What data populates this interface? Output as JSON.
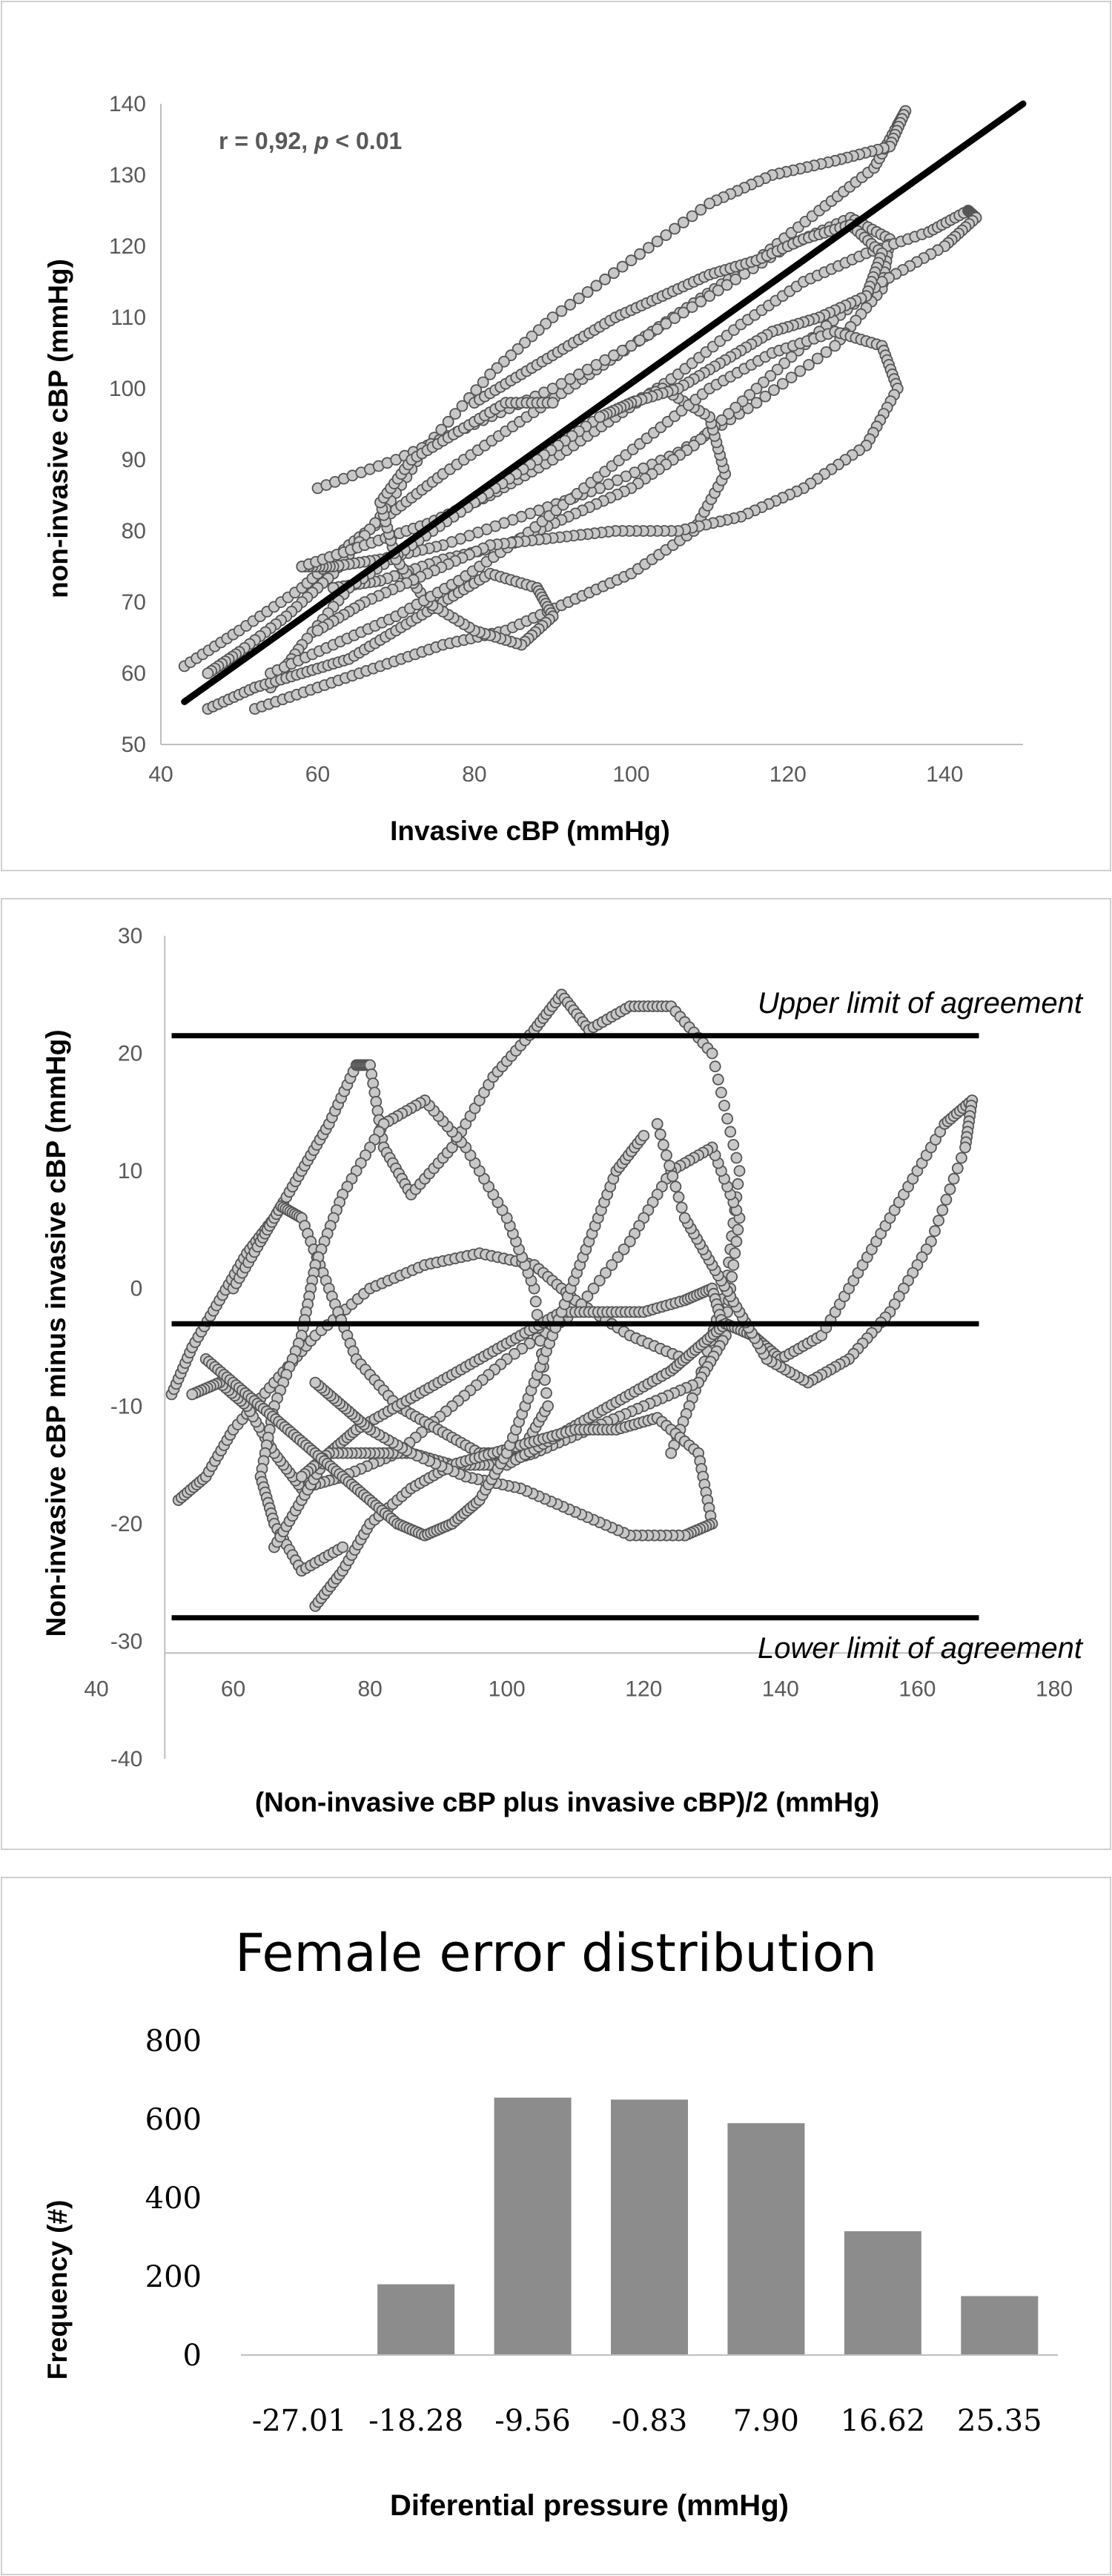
{
  "chart_data": [
    {
      "type": "scatter",
      "title": "",
      "xlabel": "Invasive cBP (mmHg)",
      "ylabel": "non-invasive cBP  (mmHg)",
      "xlim": [
        40,
        150
      ],
      "ylim": [
        50,
        140
      ],
      "x_ticks": [
        "40",
        "60",
        "80",
        "100",
        "120",
        "140"
      ],
      "y_ticks": [
        "50",
        "60",
        "70",
        "80",
        "90",
        "100",
        "110",
        "120",
        "130",
        "140"
      ],
      "annotation": {
        "r_text": "r = 0,92, ",
        "p_symbol": "p",
        "p_rest": " < 0.01"
      },
      "regression_line": {
        "x": [
          43,
          150
        ],
        "y": [
          56,
          140
        ]
      },
      "grid": false,
      "series": [
        {
          "x": [
            43,
            50,
            58,
            64,
            70,
            76,
            84,
            92,
            100,
            108,
            116,
            124,
            131,
            134,
            135,
            133,
            126,
            118,
            110,
            100,
            90,
            82,
            74,
            68,
            62,
            56,
            50,
            46
          ],
          "y": [
            61,
            66,
            72,
            78,
            83,
            88,
            94,
            100,
            106,
            112,
            118,
            125,
            131,
            137,
            139,
            134,
            132,
            130,
            126,
            118,
            110,
            102,
            92,
            82,
            74,
            68,
            63,
            60
          ]
        },
        {
          "x": [
            60,
            70,
            80,
            90,
            100,
            110,
            120,
            128,
            133,
            132,
            126,
            116,
            106,
            96,
            86,
            76,
            68,
            62,
            58
          ],
          "y": [
            86,
            90,
            95,
            100,
            106,
            113,
            120,
            124,
            121,
            114,
            106,
            98,
            91,
            86,
            82,
            78,
            76,
            75,
            75
          ]
        },
        {
          "x": [
            58,
            66,
            74,
            82,
            90,
            98,
            106,
            114,
            122,
            130,
            138,
            143,
            144,
            140,
            132,
            124,
            116,
            108,
            100,
            92,
            84,
            76,
            68,
            62
          ],
          "y": [
            75,
            78,
            81,
            85,
            90,
            96,
            102,
            109,
            115,
            119,
            122,
            125,
            124,
            120,
            115,
            108,
            100,
            92,
            86,
            82,
            78,
            76,
            73,
            72
          ]
        },
        {
          "x": [
            52,
            60,
            68,
            76,
            84,
            92,
            100,
            108,
            112,
            110,
            104,
            96,
            88,
            80,
            72,
            64,
            58,
            54
          ],
          "y": [
            55,
            58,
            61,
            64,
            66,
            70,
            74,
            80,
            88,
            96,
            100,
            96,
            90,
            84,
            78,
            72,
            64,
            58
          ]
        },
        {
          "x": [
            46,
            52,
            58,
            64,
            70,
            76,
            82,
            88,
            90,
            86,
            80,
            74,
            70,
            68,
            72,
            78,
            84,
            90
          ],
          "y": [
            55,
            58,
            60,
            62,
            66,
            70,
            74,
            72,
            68,
            64,
            66,
            70,
            76,
            84,
            90,
            94,
            98,
            98
          ]
        },
        {
          "x": [
            54,
            62,
            70,
            78,
            86,
            94,
            102,
            110,
            118,
            126,
            132,
            134,
            130,
            122,
            114,
            106,
            98,
            90,
            82,
            74,
            66,
            60
          ],
          "y": [
            60,
            64,
            68,
            73,
            79,
            86,
            93,
            100,
            105,
            108,
            106,
            100,
            92,
            86,
            82,
            80,
            80,
            79,
            78,
            74,
            70,
            66
          ]
        },
        {
          "x": [
            80,
            86,
            92,
            98,
            104,
            110,
            116,
            122,
            128,
            132,
            130,
            124,
            118,
            112,
            106,
            100,
            96
          ],
          "y": [
            98,
            102,
            106,
            110,
            113,
            116,
            118,
            121,
            123,
            119,
            113,
            110,
            108,
            104,
            100,
            98,
            96
          ]
        }
      ]
    },
    {
      "type": "scatter",
      "title": "",
      "xlabel": "(Non-invasive cBP plus invasive cBP)/2 (mmHg)",
      "ylabel": "Non-invasive cBP minus invasive cBP (mmHg)",
      "xlim": [
        40,
        180
      ],
      "ylim": [
        -40,
        30
      ],
      "x_ticks": [
        "40",
        "60",
        "80",
        "100",
        "120",
        "140",
        "160",
        "180"
      ],
      "y_ticks": [
        "-40",
        "-30",
        "-20",
        "-10",
        "0",
        "10",
        "20",
        "30"
      ],
      "lines": [
        {
          "label": "Upper limit of agreement",
          "y": 21.5
        },
        {
          "label": "",
          "y": -3
        },
        {
          "label": "Lower limit of agreement",
          "y": -28
        }
      ],
      "grid": false,
      "series": [
        {
          "x": [
            51,
            54,
            58,
            62,
            66,
            70,
            74,
            78,
            80,
            82,
            86,
            92,
            98,
            104,
            108,
            112,
            118,
            124,
            130,
            134,
            132,
            128,
            124
          ],
          "y": [
            -9,
            -5,
            -1,
            3,
            6,
            10,
            14,
            19,
            19,
            12,
            8,
            12,
            18,
            22,
            25,
            22,
            24,
            24,
            20,
            10,
            0,
            -8,
            -14
          ]
        },
        {
          "x": [
            52,
            56,
            60,
            66,
            72,
            80,
            88,
            96,
            104,
            110,
            118,
            126,
            132,
            134,
            130,
            124,
            118,
            110,
            100,
            92,
            84,
            76,
            70,
            66,
            62,
            58,
            54
          ],
          "y": [
            -18,
            -16,
            -12,
            -8,
            -4,
            0,
            2,
            3,
            2,
            -1,
            -4,
            -6,
            -3,
            6,
            12,
            10,
            4,
            -2,
            -6,
            -10,
            -14,
            -16,
            -17,
            -14,
            -10,
            -8,
            -9
          ]
        },
        {
          "x": [
            60,
            64,
            67,
            70,
            74,
            78,
            84,
            90,
            96,
            102,
            106,
            104,
            100,
            94,
            88,
            82,
            76,
            72,
            70,
            66,
            64,
            66,
            70,
            76
          ],
          "y": [
            0,
            4,
            7,
            6,
            0,
            -6,
            -10,
            -12,
            -14,
            -14,
            -10,
            0,
            6,
            12,
            16,
            14,
            8,
            2,
            -4,
            -10,
            -16,
            -20,
            -24,
            -22
          ]
        },
        {
          "x": [
            66,
            70,
            74,
            78,
            84,
            90,
            96,
            102,
            108,
            114,
            120,
            126,
            130,
            132,
            128,
            120,
            112,
            104,
            98,
            92,
            86,
            80,
            74,
            70
          ],
          "y": [
            -22,
            -18,
            -14,
            -12,
            -10,
            -8,
            -6,
            -4,
            -2,
            -2,
            -2,
            -1,
            0,
            -4,
            -8,
            -10,
            -12,
            -14,
            -15,
            -15,
            -14,
            -14,
            -14,
            -16
          ]
        },
        {
          "x": [
            100,
            106,
            112,
            118,
            124,
            128,
            132,
            136,
            140,
            146,
            152,
            158,
            164,
            168,
            167,
            162,
            156,
            150,
            144,
            138,
            134,
            130,
            126,
            122
          ],
          "y": [
            -15,
            -13,
            -11,
            -9,
            -7,
            -5,
            -3,
            -4,
            -6,
            -4,
            2,
            8,
            14,
            16,
            12,
            4,
            -2,
            -6,
            -8,
            -6,
            -2,
            2,
            6,
            14
          ]
        },
        {
          "x": [
            72,
            76,
            80,
            86,
            92,
            98,
            104,
            110,
            116,
            122,
            128,
            130,
            126,
            118,
            110,
            102,
            94,
            86,
            80,
            76,
            72
          ],
          "y": [
            -27,
            -24,
            -20,
            -17,
            -15,
            -14,
            -13,
            -12,
            -12,
            -11,
            -14,
            -20,
            -21,
            -21,
            -19,
            -17,
            -16,
            -14,
            -12,
            -10,
            -8
          ]
        },
        {
          "x": [
            56,
            60,
            64,
            68,
            72,
            76,
            80,
            84,
            88,
            92,
            96,
            100,
            104,
            108,
            112,
            116,
            120
          ],
          "y": [
            -6,
            -8,
            -10,
            -12,
            -14,
            -16,
            -18,
            -20,
            -21,
            -20,
            -18,
            -14,
            -8,
            -2,
            4,
            10,
            13
          ]
        }
      ]
    },
    {
      "type": "bar",
      "title": "Female error distribution",
      "xlabel": "Diferential pressure (mmHg)",
      "ylabel": "Frequency (#)",
      "categories": [
        "-27.01",
        "-18.28",
        "-9.56",
        "-0.83",
        "7.90",
        "16.62",
        "25.35"
      ],
      "values": [
        0,
        180,
        655,
        650,
        590,
        315,
        150
      ],
      "ylim": [
        0,
        800
      ],
      "y_ticks": [
        "0",
        "200",
        "400",
        "600",
        "800"
      ],
      "grid": false,
      "legend": "none",
      "colors": {
        "bar": "#8c8c8c",
        "axis": "#bfbfbf",
        "text": "#3f3f3f"
      }
    }
  ]
}
